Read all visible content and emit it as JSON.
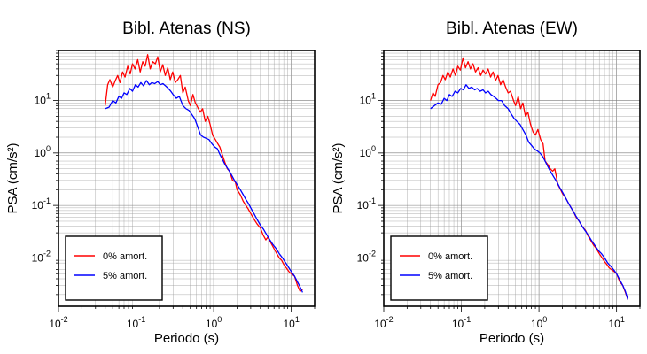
{
  "chart_data": [
    {
      "type": "line",
      "title": "Bibl. Atenas (NS)",
      "xlabel": "Periodo (s)",
      "ylabel": "PSA (cm/s²)",
      "xscale": "log",
      "yscale": "log",
      "xlim": [
        0.01,
        20
      ],
      "ylim": [
        0.0012,
        90
      ],
      "xticks": [
        {
          "base": "10",
          "exp": "-2"
        },
        {
          "base": "10",
          "exp": "-1"
        },
        {
          "base": "10",
          "exp": "0"
        },
        {
          "base": "10",
          "exp": "1"
        }
      ],
      "yticks": [
        {
          "base": "10",
          "exp": "-2"
        },
        {
          "base": "10",
          "exp": "-1"
        },
        {
          "base": "10",
          "exp": "0"
        },
        {
          "base": "10",
          "exp": "1"
        }
      ],
      "grid": true,
      "legend_position": "bottom-left",
      "series": [
        {
          "name": "0% amort.",
          "color": "#ff0000",
          "x": [
            0.04,
            0.043,
            0.046,
            0.05,
            0.054,
            0.058,
            0.062,
            0.067,
            0.072,
            0.078,
            0.084,
            0.09,
            0.097,
            0.105,
            0.113,
            0.122,
            0.131,
            0.141,
            0.152,
            0.164,
            0.177,
            0.19,
            0.205,
            0.221,
            0.238,
            0.256,
            0.276,
            0.297,
            0.32,
            0.345,
            0.372,
            0.4,
            0.43,
            0.47,
            0.5,
            0.54,
            0.58,
            0.62,
            0.67,
            0.72,
            0.78,
            0.84,
            0.9,
            0.97,
            1.05,
            1.13,
            1.2,
            1.3,
            1.4,
            1.5,
            1.6,
            1.75,
            1.9,
            2.0,
            2.2,
            2.4,
            2.6,
            2.8,
            3.0,
            3.3,
            3.6,
            4.0,
            4.3,
            4.7,
            5.0,
            5.5,
            6.0,
            6.5,
            7.0,
            7.5,
            8.0,
            8.6,
            9.3,
            10,
            11,
            12,
            13,
            14
          ],
          "values": [
            8,
            20,
            25,
            18,
            24,
            30,
            22,
            35,
            28,
            45,
            32,
            50,
            40,
            60,
            35,
            55,
            45,
            75,
            40,
            55,
            50,
            68,
            35,
            48,
            30,
            42,
            25,
            35,
            22,
            25,
            30,
            14,
            18,
            10,
            8,
            13,
            9,
            7.5,
            6,
            7,
            4,
            5,
            3.5,
            2.2,
            1.8,
            1.5,
            1.3,
            0.9,
            0.65,
            0.5,
            0.45,
            0.3,
            0.28,
            0.2,
            0.16,
            0.12,
            0.1,
            0.085,
            0.07,
            0.055,
            0.045,
            0.037,
            0.028,
            0.022,
            0.025,
            0.019,
            0.015,
            0.012,
            0.01,
            0.009,
            0.0075,
            0.0065,
            0.0055,
            0.005,
            0.0045,
            0.003,
            0.0023,
            0.0025
          ]
        },
        {
          "name": "5% amort.",
          "color": "#0000ff",
          "x": [
            0.04,
            0.045,
            0.05,
            0.055,
            0.06,
            0.065,
            0.07,
            0.076,
            0.083,
            0.09,
            0.098,
            0.106,
            0.115,
            0.125,
            0.136,
            0.148,
            0.16,
            0.174,
            0.19,
            0.205,
            0.222,
            0.24,
            0.26,
            0.28,
            0.3,
            0.33,
            0.36,
            0.4,
            0.44,
            0.48,
            0.52,
            0.57,
            0.62,
            0.68,
            0.74,
            0.8,
            0.87,
            0.95,
            1.03,
            1.12,
            1.2,
            1.3,
            1.4,
            1.55,
            1.7,
            1.85,
            2.0,
            2.2,
            2.4,
            2.6,
            2.8,
            3.0,
            3.3,
            3.6,
            4.0,
            4.4,
            4.8,
            5.3,
            5.8,
            6.4,
            7.0,
            7.7,
            8.5,
            9.3,
            10,
            11,
            12,
            13,
            14
          ],
          "values": [
            7,
            7.5,
            10,
            9,
            12,
            11,
            14,
            13,
            17,
            15,
            20,
            18,
            22,
            19,
            24,
            20,
            22,
            21,
            23,
            20,
            21,
            19,
            17,
            15,
            13,
            11,
            12,
            8,
            7,
            6.5,
            5.5,
            4.5,
            3.2,
            2.2,
            2,
            1.9,
            1.8,
            1.5,
            1.3,
            1.2,
            0.95,
            0.75,
            0.6,
            0.48,
            0.38,
            0.3,
            0.25,
            0.2,
            0.16,
            0.13,
            0.11,
            0.09,
            0.07,
            0.055,
            0.042,
            0.035,
            0.028,
            0.022,
            0.018,
            0.015,
            0.012,
            0.01,
            0.008,
            0.0065,
            0.0055,
            0.0045,
            0.0035,
            0.0028,
            0.0022
          ]
        }
      ]
    },
    {
      "type": "line",
      "title": "Bibl. Atenas (EW)",
      "xlabel": "Periodo (s)",
      "ylabel": "PSA (cm/s²)",
      "xscale": "log",
      "yscale": "log",
      "xlim": [
        0.01,
        20
      ],
      "ylim": [
        0.0012,
        90
      ],
      "xticks": [
        {
          "base": "10",
          "exp": "-2"
        },
        {
          "base": "10",
          "exp": "-1"
        },
        {
          "base": "10",
          "exp": "0"
        },
        {
          "base": "10",
          "exp": "1"
        }
      ],
      "yticks": [
        {
          "base": "10",
          "exp": "-2"
        },
        {
          "base": "10",
          "exp": "-1"
        },
        {
          "base": "10",
          "exp": "0"
        },
        {
          "base": "10",
          "exp": "1"
        }
      ],
      "grid": true,
      "legend_position": "bottom-left",
      "series": [
        {
          "name": "0% amort.",
          "color": "#ff0000",
          "x": [
            0.04,
            0.043,
            0.046,
            0.05,
            0.054,
            0.058,
            0.062,
            0.067,
            0.072,
            0.078,
            0.084,
            0.09,
            0.097,
            0.105,
            0.113,
            0.122,
            0.131,
            0.141,
            0.152,
            0.164,
            0.177,
            0.19,
            0.205,
            0.221,
            0.238,
            0.256,
            0.276,
            0.297,
            0.32,
            0.345,
            0.372,
            0.4,
            0.43,
            0.47,
            0.5,
            0.54,
            0.58,
            0.62,
            0.67,
            0.72,
            0.78,
            0.84,
            0.9,
            0.97,
            1.05,
            1.13,
            1.2,
            1.3,
            1.4,
            1.5,
            1.6,
            1.75,
            1.9,
            2.0,
            2.2,
            2.4,
            2.6,
            2.8,
            3.0,
            3.3,
            3.6,
            4.0,
            4.3,
            4.7,
            5.0,
            5.5,
            6.0,
            6.5,
            7.0,
            7.5,
            8.0,
            8.6,
            9.3,
            10,
            11,
            12,
            13,
            14
          ],
          "values": [
            10,
            14,
            12,
            20,
            22,
            30,
            25,
            35,
            28,
            40,
            30,
            45,
            38,
            65,
            42,
            55,
            40,
            50,
            35,
            42,
            30,
            38,
            32,
            40,
            28,
            35,
            24,
            30,
            20,
            25,
            18,
            14,
            15,
            10,
            8,
            12,
            7,
            9,
            5,
            6,
            3.5,
            2.5,
            2.2,
            2.8,
            1.8,
            1.5,
            0.7,
            0.6,
            0.5,
            0.45,
            0.5,
            0.25,
            0.2,
            0.17,
            0.14,
            0.11,
            0.09,
            0.075,
            0.06,
            0.05,
            0.04,
            0.033,
            0.026,
            0.021,
            0.018,
            0.015,
            0.012,
            0.01,
            0.0085,
            0.0075,
            0.0065,
            0.006,
            0.0055,
            0.005,
            0.0035,
            0.003,
            0.0022,
            0.0016
          ]
        },
        {
          "name": "5% amort.",
          "color": "#0000ff",
          "x": [
            0.04,
            0.045,
            0.05,
            0.055,
            0.06,
            0.065,
            0.07,
            0.076,
            0.083,
            0.09,
            0.098,
            0.106,
            0.115,
            0.125,
            0.136,
            0.148,
            0.16,
            0.174,
            0.19,
            0.205,
            0.222,
            0.24,
            0.26,
            0.28,
            0.3,
            0.33,
            0.36,
            0.4,
            0.44,
            0.48,
            0.52,
            0.57,
            0.62,
            0.68,
            0.74,
            0.8,
            0.87,
            0.95,
            1.03,
            1.12,
            1.2,
            1.3,
            1.4,
            1.55,
            1.7,
            1.85,
            2.0,
            2.2,
            2.4,
            2.6,
            2.8,
            3.0,
            3.3,
            3.6,
            4.0,
            4.4,
            4.8,
            5.3,
            5.8,
            6.4,
            7.0,
            7.7,
            8.5,
            9.3,
            10,
            11,
            12,
            13,
            14
          ],
          "values": [
            7,
            8,
            9,
            8.5,
            11,
            10,
            13,
            12,
            15,
            14,
            17,
            16,
            20,
            17,
            18,
            16,
            17,
            15,
            16,
            14,
            15,
            13,
            12,
            11,
            10,
            10,
            8,
            7,
            5.5,
            4.5,
            4,
            3.5,
            2.8,
            2.2,
            1.6,
            1.4,
            1.2,
            1.1,
            1.0,
            0.85,
            0.7,
            0.55,
            0.45,
            0.35,
            0.28,
            0.22,
            0.18,
            0.14,
            0.11,
            0.09,
            0.075,
            0.062,
            0.05,
            0.04,
            0.032,
            0.026,
            0.021,
            0.017,
            0.014,
            0.012,
            0.01,
            0.008,
            0.0068,
            0.0058,
            0.005,
            0.0038,
            0.003,
            0.0023,
            0.0016
          ]
        }
      ]
    }
  ]
}
